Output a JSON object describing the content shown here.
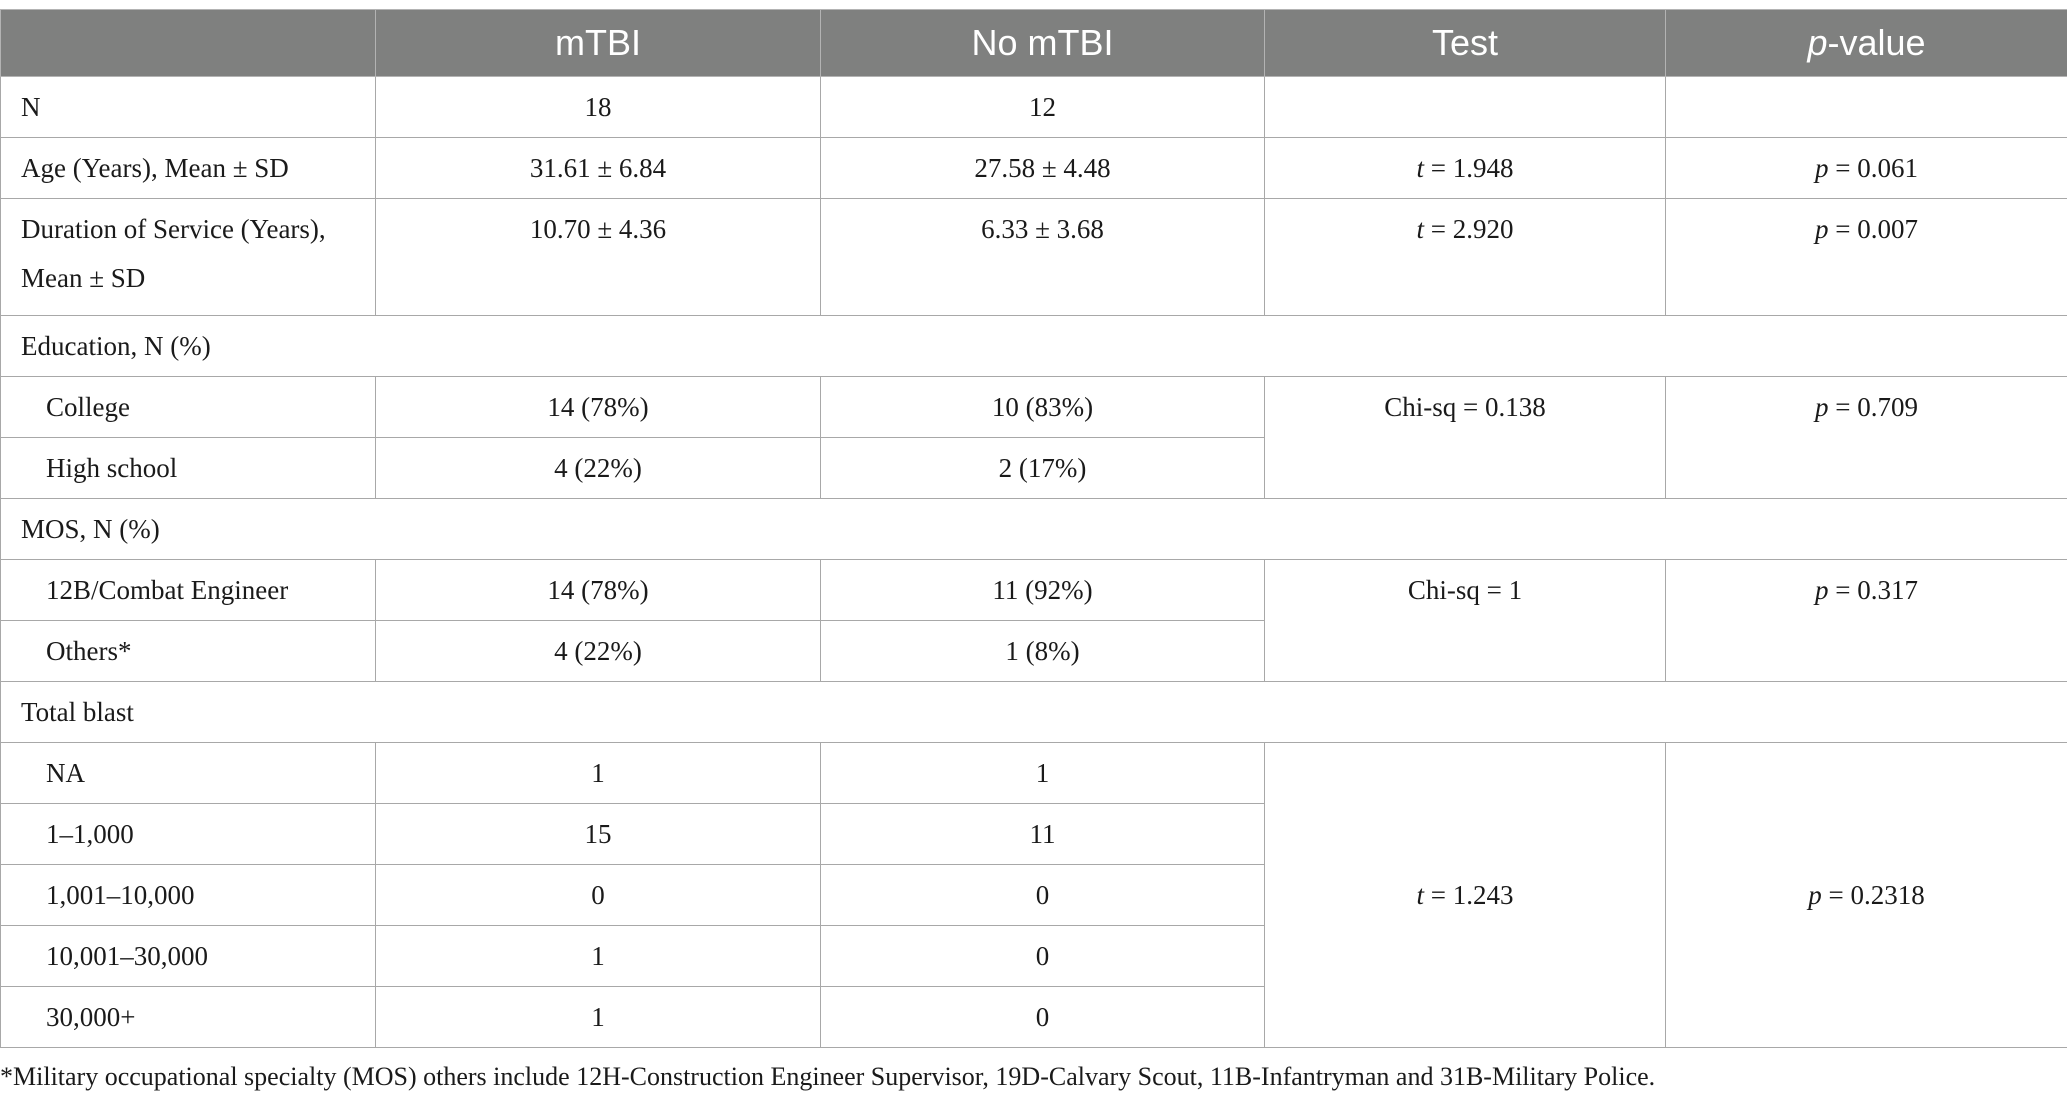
{
  "table": {
    "headers": [
      "",
      "mTBI",
      "No mTBI",
      "Test",
      "-value"
    ],
    "header_pvalue_italic": "p",
    "rows": {
      "n": {
        "label": "N",
        "mtbi": "18",
        "no_mtbi": "12",
        "test": "",
        "p": ""
      },
      "age": {
        "label": "Age (Years), Mean ± SD",
        "mtbi": "31.61 ± 6.84",
        "no_mtbi": "27.58 ± 4.48",
        "test_var": "t",
        "test_val": " = 1.948",
        "p_var": "p",
        "p_val": " = 0.061"
      },
      "service": {
        "label_line1": "Duration of Service (Years),",
        "label_line2": "Mean ± SD",
        "mtbi": "10.70 ± 4.36",
        "no_mtbi": "6.33 ± 3.68",
        "test_var": "t",
        "test_val": " = 2.920",
        "p_var": "p",
        "p_val": " = 0.007"
      },
      "education": {
        "label": "Education, N (%)",
        "test": "Chi-sq = 0.138",
        "p_var": "p",
        "p_val": " = 0.709",
        "items": [
          {
            "label": "College",
            "mtbi": "14 (78%)",
            "no_mtbi": "10 (83%)"
          },
          {
            "label": "High school",
            "mtbi": "4 (22%)",
            "no_mtbi": "2 (17%)"
          }
        ]
      },
      "mos": {
        "label": "MOS, N (%)",
        "test": "Chi-sq = 1",
        "p_var": "p",
        "p_val": " = 0.317",
        "items": [
          {
            "label": "12B/Combat Engineer",
            "mtbi": "14 (78%)",
            "no_mtbi": "11 (92%)"
          },
          {
            "label": "Others*",
            "mtbi": "4 (22%)",
            "no_mtbi": "1 (8%)"
          }
        ]
      },
      "blast": {
        "label": "Total blast",
        "test_var": "t",
        "test_val": " = 1.243",
        "p_var": "p",
        "p_val": " = 0.2318",
        "items": [
          {
            "label": "NA",
            "mtbi": "1",
            "no_mtbi": "1"
          },
          {
            "label": "1–1,000",
            "mtbi": "15",
            "no_mtbi": "11"
          },
          {
            "label": "1,001–10,000",
            "mtbi": "0",
            "no_mtbi": "0"
          },
          {
            "label": "10,001–30,000",
            "mtbi": "1",
            "no_mtbi": "0"
          },
          {
            "label": "30,000+",
            "mtbi": "1",
            "no_mtbi": "0"
          }
        ]
      }
    }
  },
  "footnote": "*Military occupational specialty (MOS) others include 12H-Construction Engineer Supervisor, 19D-Calvary Scout, 11B-Infantryman and 31B-Military Police.",
  "colors": {
    "header_bg": "#7f807f",
    "header_text": "#ffffff",
    "border": "#a8a8a8"
  }
}
